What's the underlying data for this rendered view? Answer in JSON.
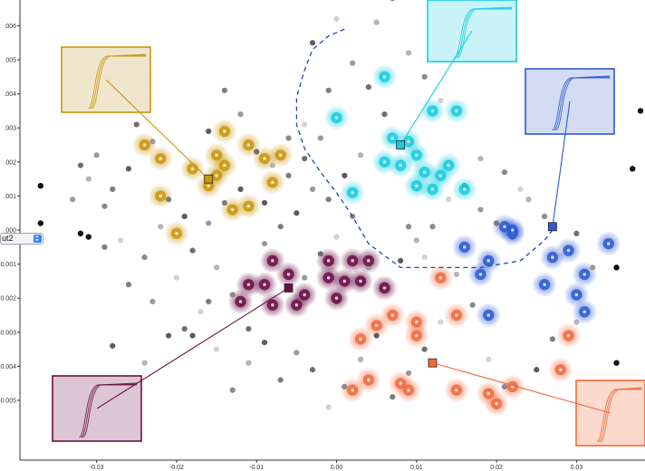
{
  "chart_data": {
    "type": "scatter",
    "title": "",
    "xlabel": "",
    "ylabel": "",
    "xlim": [
      -0.037,
      0.04
    ],
    "ylim": [
      -0.0058,
      0.0078
    ],
    "x_ticks": [
      -0.03,
      -0.02,
      -0.01,
      0.0,
      0.01,
      0.02,
      0.03
    ],
    "x_tick_labels": [
      "-0.03",
      "-0.02",
      "-0.01",
      "0.00",
      "0.01",
      "0.02",
      "0.03"
    ],
    "y_ticks": [
      0.007,
      0.006,
      0.005,
      0.004,
      0.003,
      0.002,
      0.001,
      0.0,
      -0.001,
      -0.002,
      -0.003,
      -0.004,
      -0.005
    ],
    "y_tick_labels": [
      ".007",
      ".006",
      ".005",
      ".004",
      ".003",
      ".002",
      ".001",
      ".000",
      "-0.001",
      "-0.002",
      "-0.003",
      "-0.004",
      "-0.005"
    ],
    "grid": false,
    "background_points": [
      [
        -0.03,
        0.0022
      ],
      [
        -0.028,
        0.0012
      ],
      [
        -0.026,
        0.0018
      ],
      [
        -0.031,
        0.0015
      ],
      [
        -0.029,
        0.0007
      ],
      [
        -0.027,
        -0.0003
      ],
      [
        -0.025,
        0.0031
      ],
      [
        -0.023,
        0.0026
      ],
      [
        -0.021,
        0.0009
      ],
      [
        -0.019,
        0.0004
      ],
      [
        -0.022,
        0.0001
      ],
      [
        -0.024,
        -0.0008
      ],
      [
        -0.02,
        -0.0014
      ],
      [
        -0.018,
        -0.0006
      ],
      [
        -0.016,
        0.0002
      ],
      [
        -0.014,
        0.0008
      ],
      [
        -0.012,
        0.0012
      ],
      [
        -0.015,
        -0.0011
      ],
      [
        -0.013,
        -0.0019
      ],
      [
        -0.017,
        -0.0024
      ],
      [
        -0.011,
        -0.0029
      ],
      [
        -0.009,
        -0.0004
      ],
      [
        -0.007,
        0.0001
      ],
      [
        -0.005,
        0.0005
      ],
      [
        -0.008,
        0.0019
      ],
      [
        -0.006,
        0.0027
      ],
      [
        -0.004,
        0.0031
      ],
      [
        -0.01,
        0.0023
      ],
      [
        -0.003,
        0.0012
      ],
      [
        -0.001,
        0.0009
      ],
      [
        0.001,
        0.0016
      ],
      [
        0.003,
        0.0022
      ],
      [
        0.002,
        0.0004
      ],
      [
        0.0,
        -0.0002
      ],
      [
        -0.002,
        -0.0007
      ],
      [
        0.004,
        -0.0011
      ],
      [
        0.006,
        -0.0016
      ],
      [
        0.008,
        -0.0009
      ],
      [
        0.01,
        -0.0003
      ],
      [
        0.012,
        0.0001
      ],
      [
        0.014,
        0.0009
      ],
      [
        0.016,
        0.0013
      ],
      [
        0.018,
        0.0006
      ],
      [
        0.02,
        0.0002
      ],
      [
        0.022,
        -0.0002
      ],
      [
        0.015,
        -0.0013
      ],
      [
        0.017,
        -0.0022
      ],
      [
        0.013,
        -0.0027
      ],
      [
        0.011,
        -0.0035
      ],
      [
        0.009,
        -0.0042
      ],
      [
        0.007,
        -0.0049
      ],
      [
        0.005,
        -0.0031
      ],
      [
        0.003,
        -0.0038
      ],
      [
        0.001,
        -0.0046
      ],
      [
        -0.001,
        -0.0052
      ],
      [
        -0.003,
        -0.0041
      ],
      [
        -0.005,
        -0.0036
      ],
      [
        -0.007,
        -0.0044
      ],
      [
        -0.009,
        -0.0033
      ],
      [
        -0.011,
        -0.0039
      ],
      [
        -0.013,
        -0.0047
      ],
      [
        -0.015,
        -0.0035
      ],
      [
        -0.019,
        -0.0029
      ],
      [
        -0.023,
        -0.0021
      ],
      [
        -0.026,
        -0.0016
      ],
      [
        -0.028,
        -0.0034
      ],
      [
        0.024,
        0.0009
      ],
      [
        0.026,
        0.0004
      ],
      [
        0.028,
        -0.0006
      ],
      [
        0.03,
        -0.0001
      ],
      [
        0.032,
        -0.0011
      ],
      [
        0.027,
        -0.0032
      ],
      [
        0.025,
        -0.0041
      ],
      [
        0.03,
        -0.0027
      ],
      [
        0.021,
        -0.0046
      ],
      [
        0.019,
        -0.0038
      ],
      [
        0.004,
        0.0042
      ],
      [
        0.002,
        0.0049
      ],
      [
        -0.001,
        0.0041
      ],
      [
        -0.003,
        0.0055
      ],
      [
        0.005,
        0.0061
      ],
      [
        0.007,
        0.0068
      ],
      [
        0.0,
        0.0062
      ],
      [
        -0.004,
        0.0021
      ],
      [
        -0.012,
        0.0034
      ],
      [
        -0.014,
        0.0041
      ],
      [
        -0.016,
        0.0029
      ],
      [
        0.009,
        0.0052
      ],
      [
        0.011,
        0.0045
      ],
      [
        0.013,
        0.0038
      ],
      [
        0.006,
        0.0034
      ],
      [
        -0.002,
        0.0027
      ],
      [
        -0.006,
        0.0016
      ],
      [
        -0.009,
        0.0008
      ],
      [
        0.018,
        0.0021
      ],
      [
        0.021,
        0.0017
      ],
      [
        0.023,
        0.0012
      ],
      [
        -0.032,
        0.0019
      ],
      [
        -0.033,
        0.0009
      ],
      [
        -0.029,
        -0.0005
      ],
      [
        -0.021,
        -0.0031
      ],
      [
        -0.024,
        -0.0039
      ],
      [
        0.009,
        0.0001
      ],
      [
        0.011,
        -0.0008
      ],
      [
        0.0,
        -0.0021
      ],
      [
        -0.004,
        -0.0014
      ],
      [
        -0.016,
        -0.0021
      ],
      [
        -0.018,
        -0.0031
      ]
    ],
    "outlier_points": [
      [
        -0.037,
        0.0013
      ],
      [
        -0.037,
        0.0002
      ],
      [
        -0.032,
        -0.0001
      ],
      [
        -0.031,
        -0.0002
      ],
      [
        0.038,
        0.0035
      ],
      [
        0.035,
        -0.0039
      ],
      [
        0.037,
        0.0018
      ],
      [
        0.035,
        -0.0011
      ]
    ],
    "series": [
      {
        "color": "#c9970c",
        "points": [
          [
            -0.022,
            0.0021
          ],
          [
            -0.018,
            0.0018
          ],
          [
            -0.015,
            0.0022
          ],
          [
            -0.014,
            0.0019
          ],
          [
            -0.011,
            0.0025
          ],
          [
            -0.009,
            0.0021
          ],
          [
            -0.007,
            0.0022
          ],
          [
            -0.022,
            0.001
          ],
          [
            -0.015,
            0.0016
          ],
          [
            -0.013,
            0.0006
          ],
          [
            -0.011,
            0.0007
          ],
          [
            -0.02,
            -0.0001
          ],
          [
            -0.014,
            0.0029
          ],
          [
            -0.024,
            0.0025
          ],
          [
            -0.016,
            0.0013
          ],
          [
            -0.008,
            0.0014
          ]
        ]
      },
      {
        "color": "#16cde0",
        "points": [
          [
            0.006,
            0.0045
          ],
          [
            0.012,
            0.0035
          ],
          [
            0.015,
            0.0035
          ],
          [
            0.007,
            0.0027
          ],
          [
            0.01,
            0.0022
          ],
          [
            0.011,
            0.0017
          ],
          [
            0.013,
            0.0016
          ],
          [
            0.014,
            0.0019
          ],
          [
            0.008,
            0.0019
          ],
          [
            0.009,
            0.0026
          ],
          [
            0.006,
            0.002
          ],
          [
            0.012,
            0.0012
          ],
          [
            0.0,
            0.0033
          ],
          [
            0.002,
            0.0011
          ],
          [
            0.01,
            0.0013
          ],
          [
            0.016,
            0.0012
          ]
        ]
      },
      {
        "color": "#2b5ad4",
        "points": [
          [
            0.021,
            0.0001
          ],
          [
            0.022,
            -0.0001
          ],
          [
            0.019,
            -0.0009
          ],
          [
            0.016,
            -0.0005
          ],
          [
            0.027,
            -0.0008
          ],
          [
            0.029,
            -0.0006
          ],
          [
            0.034,
            -0.0004
          ],
          [
            0.026,
            -0.0016
          ],
          [
            0.03,
            -0.0019
          ],
          [
            0.031,
            -0.0013
          ],
          [
            0.018,
            -0.0013
          ],
          [
            0.022,
            0.0
          ],
          [
            0.031,
            -0.0024
          ],
          [
            0.019,
            -0.0025
          ]
        ]
      },
      {
        "color": "#6b0f45",
        "points": [
          [
            -0.011,
            -0.0016
          ],
          [
            -0.009,
            -0.0016
          ],
          [
            -0.006,
            -0.0013
          ],
          [
            -0.004,
            -0.0019
          ],
          [
            -0.005,
            -0.0022
          ],
          [
            -0.008,
            -0.0022
          ],
          [
            -0.008,
            -0.0009
          ],
          [
            -0.001,
            -0.0009
          ],
          [
            0.002,
            -0.0009
          ],
          [
            0.004,
            -0.0009
          ],
          [
            0.001,
            -0.0015
          ],
          [
            0.0,
            -0.002
          ],
          [
            0.003,
            -0.0015
          ],
          [
            0.006,
            -0.0017
          ],
          [
            -0.001,
            -0.0014
          ],
          [
            -0.012,
            -0.0021
          ]
        ]
      },
      {
        "color": "#f26a3d",
        "points": [
          [
            0.007,
            -0.0025
          ],
          [
            0.01,
            -0.0027
          ],
          [
            0.01,
            -0.0031
          ],
          [
            0.003,
            -0.0032
          ],
          [
            0.005,
            -0.0028
          ],
          [
            0.015,
            -0.0025
          ],
          [
            0.004,
            -0.0044
          ],
          [
            0.008,
            -0.0045
          ],
          [
            0.009,
            -0.0047
          ],
          [
            0.002,
            -0.0047
          ],
          [
            0.015,
            -0.0047
          ],
          [
            0.019,
            -0.0048
          ],
          [
            0.02,
            -0.0051
          ],
          [
            0.022,
            -0.0046
          ],
          [
            0.028,
            -0.0041
          ],
          [
            0.013,
            -0.0014
          ],
          [
            0.029,
            -0.0031
          ]
        ]
      }
    ],
    "dashed_region": [
      [
        0.001,
        0.0059
      ],
      [
        -0.001,
        0.0057
      ],
      [
        -0.003,
        0.0053
      ],
      [
        -0.004,
        0.0047
      ],
      [
        -0.005,
        0.0039
      ],
      [
        -0.005,
        0.0031
      ],
      [
        -0.004,
        0.0024
      ],
      [
        -0.002,
        0.0017
      ],
      [
        0.0,
        0.0011
      ],
      [
        0.002,
        0.0004
      ],
      [
        0.004,
        -0.0004
      ],
      [
        0.008,
        -0.0011
      ],
      [
        0.012,
        -0.0011
      ],
      [
        0.018,
        -0.0011
      ],
      [
        0.023,
        -0.0009
      ],
      [
        0.026,
        -0.0003
      ],
      [
        0.027,
        0.0
      ]
    ],
    "insets": [
      {
        "color": "#c9970c",
        "anchor": [
          -0.016,
          0.0015
        ],
        "position": "upper-left"
      },
      {
        "color": "#16cde0",
        "anchor": [
          0.008,
          0.0025
        ],
        "position": "top-center"
      },
      {
        "color": "#2b5ad4",
        "anchor": [
          0.027,
          0.0001
        ],
        "position": "upper-right"
      },
      {
        "color": "#6b0f45",
        "anchor": [
          -0.006,
          -0.0017
        ],
        "position": "lower-left"
      },
      {
        "color": "#f26a3d",
        "anchor": [
          0.012,
          -0.0039
        ],
        "position": "lower-right"
      }
    ]
  },
  "controls": {
    "select_value": "ut2"
  }
}
